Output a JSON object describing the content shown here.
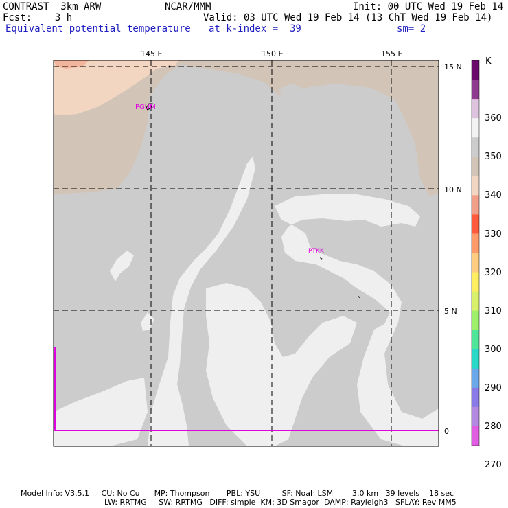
{
  "header": {
    "model": "CONTRAST  3km ARW",
    "org": "NCAR/MMM",
    "init": "Init: 00 UTC Wed 19 Feb 14",
    "fcst": "Fcst:    3 h",
    "valid": "Valid: 03 UTC Wed 19 Feb 14 (13 ChT Wed 19 Feb 14)",
    "field": "Equivalent potential temperature",
    "level": "at k-index =  39",
    "smooth": "sm= 2"
  },
  "map": {
    "lon_labels": [
      "145 E",
      "150 E",
      "155 E"
    ],
    "lat_labels": [
      "15 N",
      "10 N",
      "5 N",
      "0"
    ],
    "stations": [
      "PGUM",
      "PTKK"
    ]
  },
  "colorbar": {
    "unit": "K",
    "ticks": [
      "360",
      "350",
      "340",
      "330",
      "320",
      "310",
      "300",
      "290",
      "280",
      "270"
    ],
    "colors": [
      "#6a0a6a",
      "#8e3a8e",
      "#ddc3dd",
      "#f2f2f2",
      "#cccccc",
      "#d3c4b8",
      "#f2d6c2",
      "#f29f8a",
      "#ff5a3c",
      "#ff9a6a",
      "#ffcc80",
      "#ffee60",
      "#d9f06a",
      "#9ef06a",
      "#50e69a",
      "#2ad8c8",
      "#6aa8ea",
      "#8a7ae8",
      "#b288e0",
      "#e05ce0"
    ]
  },
  "footer": {
    "line1": "Model Info: V3.5.1     CU: No Cu      MP: Thompson       PBL: YSU         SF: Noah LSM        3.0 km   39 levels    18 sec",
    "line2": "LW: RRTMG     SW: RRTMG   DIFF: simple  KM: 3D Smagor  DAMP: Rayleigh3   SFLAY: Rev MM5"
  }
}
